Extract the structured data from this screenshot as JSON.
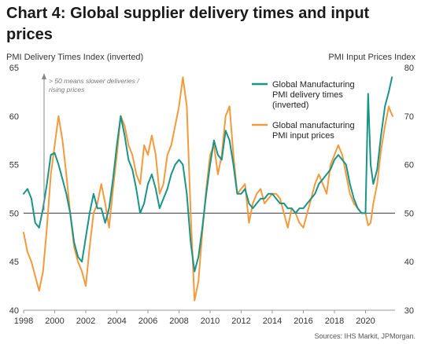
{
  "chart_data": {
    "type": "line",
    "title": "Chart 4: Global supplier delivery times and input prices",
    "title_lines": [
      "Chart 4: Global supplier delivery times and input",
      "prices"
    ],
    "left_axis_label": "PMI Delivery Times Index (inverted)",
    "right_axis_label": "PMI Input Prices Index",
    "left_ylim": [
      40,
      65
    ],
    "left_ticks": [
      40,
      45,
      50,
      55,
      60,
      65
    ],
    "right_ylim": [
      30,
      80
    ],
    "right_ticks": [
      30,
      40,
      50,
      60,
      70,
      80
    ],
    "xlim": [
      1998.0,
      2021.9
    ],
    "x_ticks": [
      1998,
      2000,
      2002,
      2004,
      2006,
      2008,
      2010,
      2012,
      2014,
      2016,
      2018,
      2020
    ],
    "x_tick_labels": [
      "1998",
      "2000",
      "2002",
      "2004",
      "2006",
      "2008",
      "2010",
      "2012",
      "2014",
      "2016",
      "2018",
      "2020"
    ],
    "reference_line": {
      "axis": "left",
      "value": 50
    },
    "annotation": {
      "text_lines": [
        "> 50 means slower deliveries /",
        "rising prices"
      ]
    },
    "grid": false,
    "legend_position": "top-right",
    "source": "Sources: IHS Markit, JPMorgan.",
    "series": [
      {
        "name": "Global Manufacturing PMI delivery times (inverted)",
        "legend_lines": [
          "Global Manufacturing",
          "PMI delivery times",
          "(inverted)"
        ],
        "axis": "left",
        "color": "#1a9487",
        "x": [
          1998.0,
          1998.25,
          1998.5,
          1998.75,
          1999.0,
          1999.25,
          1999.5,
          1999.75,
          2000.0,
          2000.25,
          2000.5,
          2000.75,
          2001.0,
          2001.25,
          2001.5,
          2001.75,
          2002.0,
          2002.25,
          2002.5,
          2002.75,
          2003.0,
          2003.25,
          2003.5,
          2003.75,
          2004.0,
          2004.25,
          2004.5,
          2004.75,
          2005.0,
          2005.25,
          2005.5,
          2005.75,
          2006.0,
          2006.25,
          2006.5,
          2006.75,
          2007.0,
          2007.25,
          2007.5,
          2007.75,
          2008.0,
          2008.25,
          2008.5,
          2008.75,
          2009.0,
          2009.25,
          2009.5,
          2009.75,
          2010.0,
          2010.25,
          2010.5,
          2010.75,
          2011.0,
          2011.25,
          2011.5,
          2011.75,
          2012.0,
          2012.25,
          2012.5,
          2012.75,
          2013.0,
          2013.25,
          2013.5,
          2013.75,
          2014.0,
          2014.25,
          2014.5,
          2014.75,
          2015.0,
          2015.25,
          2015.5,
          2015.75,
          2016.0,
          2016.25,
          2016.5,
          2016.75,
          2017.0,
          2017.25,
          2017.5,
          2017.75,
          2018.0,
          2018.25,
          2018.5,
          2018.75,
          2019.0,
          2019.25,
          2019.5,
          2019.75,
          2020.0,
          2020.17,
          2020.33,
          2020.5,
          2020.75,
          2021.0,
          2021.25,
          2021.5,
          2021.7
        ],
        "values": [
          52.0,
          52.5,
          51.5,
          49.0,
          48.5,
          50.5,
          53.0,
          56.0,
          56.2,
          55.0,
          53.5,
          52.0,
          50.0,
          47.0,
          45.5,
          45.0,
          47.5,
          50.0,
          52.0,
          50.5,
          50.5,
          49.0,
          50.5,
          53.5,
          57.0,
          60.0,
          58.0,
          55.5,
          54.5,
          52.5,
          50.0,
          51.0,
          53.0,
          54.0,
          52.5,
          50.5,
          51.5,
          52.5,
          54.0,
          55.0,
          55.5,
          55.0,
          52.0,
          47.0,
          44.0,
          45.5,
          48.5,
          52.0,
          55.0,
          57.5,
          56.0,
          55.5,
          58.5,
          57.5,
          55.0,
          52.0,
          52.0,
          52.5,
          51.0,
          50.5,
          51.0,
          51.5,
          51.5,
          52.0,
          52.0,
          51.5,
          51.0,
          51.0,
          50.5,
          50.5,
          50.0,
          50.5,
          50.5,
          51.0,
          51.5,
          52.0,
          53.0,
          53.5,
          54.0,
          54.5,
          55.5,
          56.0,
          55.5,
          55.0,
          53.0,
          51.5,
          50.5,
          50.0,
          50.0,
          62.3,
          55.0,
          53.0,
          54.5,
          58.0,
          61.0,
          62.5,
          64.0
        ]
      },
      {
        "name": "Global manufacturing PMI input prices",
        "legend_lines": [
          "Global manufacturing",
          "PMI input prices"
        ],
        "axis": "right",
        "color": "#f39a3d",
        "x": [
          1998.0,
          1998.25,
          1998.5,
          1998.75,
          1999.0,
          1999.25,
          1999.5,
          1999.75,
          2000.0,
          2000.25,
          2000.5,
          2000.75,
          2001.0,
          2001.25,
          2001.5,
          2001.75,
          2002.0,
          2002.25,
          2002.5,
          2002.75,
          2003.0,
          2003.25,
          2003.5,
          2003.75,
          2004.0,
          2004.25,
          2004.5,
          2004.75,
          2005.0,
          2005.25,
          2005.5,
          2005.75,
          2006.0,
          2006.25,
          2006.5,
          2006.75,
          2007.0,
          2007.25,
          2007.5,
          2007.75,
          2008.0,
          2008.25,
          2008.5,
          2008.75,
          2009.0,
          2009.25,
          2009.5,
          2009.75,
          2010.0,
          2010.25,
          2010.5,
          2010.75,
          2011.0,
          2011.25,
          2011.5,
          2011.75,
          2012.0,
          2012.25,
          2012.5,
          2012.75,
          2013.0,
          2013.25,
          2013.5,
          2013.75,
          2014.0,
          2014.25,
          2014.5,
          2014.75,
          2015.0,
          2015.25,
          2015.5,
          2015.75,
          2016.0,
          2016.25,
          2016.5,
          2016.75,
          2017.0,
          2017.25,
          2017.5,
          2017.75,
          2018.0,
          2018.25,
          2018.5,
          2018.75,
          2019.0,
          2019.25,
          2019.5,
          2019.75,
          2020.0,
          2020.17,
          2020.33,
          2020.5,
          2020.75,
          2021.0,
          2021.25,
          2021.5,
          2021.6,
          2021.75
        ],
        "values": [
          46.0,
          42.0,
          40.0,
          37.0,
          34.0,
          38.0,
          47.0,
          58.0,
          64.0,
          70.0,
          65.0,
          58.0,
          50.0,
          43.0,
          40.0,
          38.0,
          35.0,
          43.0,
          50.0,
          52.0,
          56.0,
          52.0,
          47.0,
          55.0,
          62.0,
          70.0,
          68.0,
          64.0,
          62.0,
          58.0,
          56.0,
          64.0,
          62.0,
          66.0,
          62.0,
          54.0,
          56.0,
          62.0,
          64.0,
          68.0,
          72.0,
          78.0,
          72.0,
          50.0,
          32.0,
          36.0,
          46.0,
          55.0,
          62.0,
          64.0,
          58.0,
          62.0,
          70.0,
          72.0,
          62.0,
          54.0,
          55.0,
          56.0,
          48.0,
          52.0,
          54.0,
          55.0,
          52.0,
          53.0,
          54.0,
          54.0,
          53.0,
          50.0,
          47.0,
          51.0,
          50.0,
          48.0,
          47.0,
          50.0,
          53.0,
          56.0,
          58.0,
          56.0,
          54.0,
          60.0,
          62.0,
          64.0,
          62.0,
          58.0,
          54.0,
          52.0,
          51.0,
          50.0,
          50.0,
          47.5,
          48.0,
          52.0,
          56.0,
          63.0,
          68.0,
          72.0,
          71.0,
          70.0
        ]
      }
    ]
  }
}
